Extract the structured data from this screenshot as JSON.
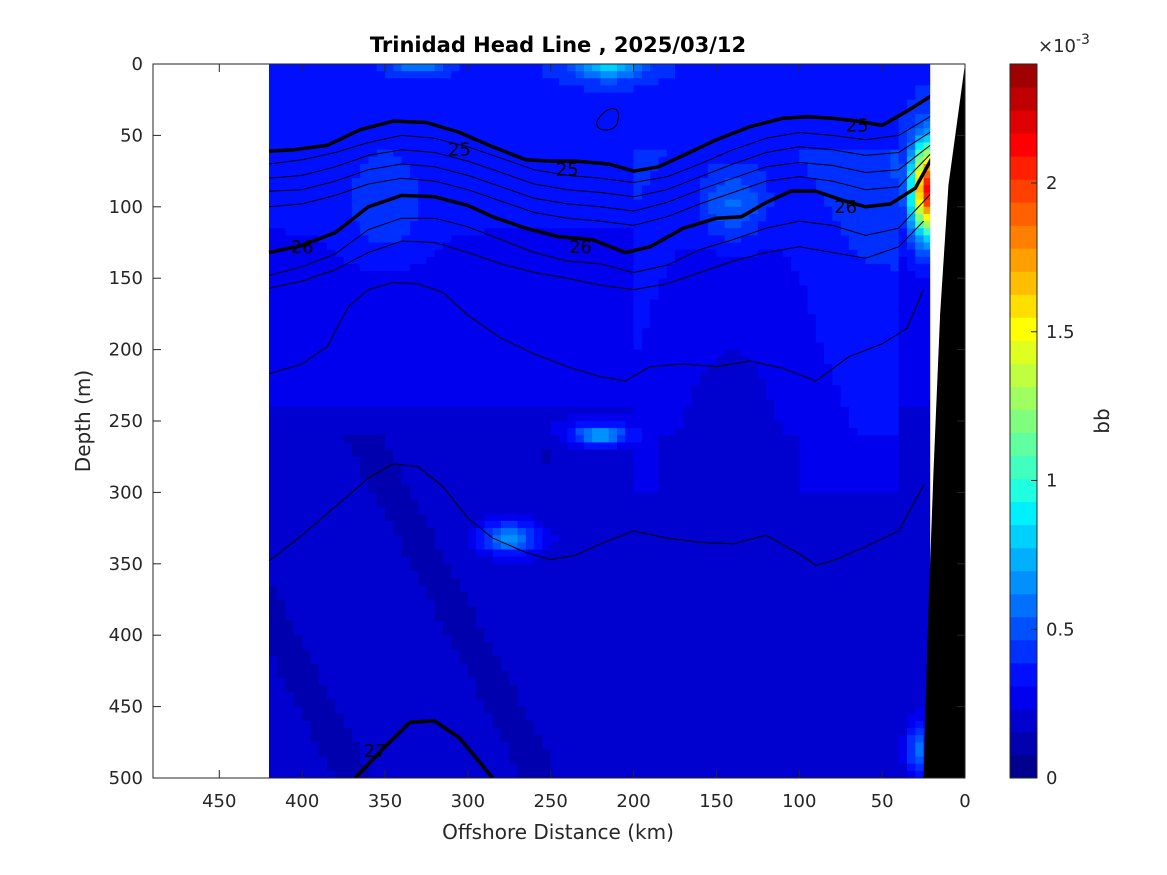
{
  "chart_data": {
    "type": "heatmap",
    "title": "Trinidad Head Line , 2025/03/12",
    "xlabel": "Offshore Distance (km)",
    "ylabel": "Depth (m)",
    "xlim": [
      490,
      0
    ],
    "ylim": [
      0,
      500
    ],
    "x_ticks": [
      450,
      400,
      350,
      300,
      250,
      200,
      150,
      100,
      50,
      0
    ],
    "y_ticks": [
      0,
      50,
      100,
      150,
      200,
      250,
      300,
      350,
      400,
      450,
      500
    ],
    "data_xmax_km": 420,
    "colorbar": {
      "label": "bb",
      "exponent_label": "×10",
      "exponent": "-3",
      "min": 0,
      "max": 2.4,
      "ticks": [
        0,
        0.5,
        1,
        1.5,
        2
      ],
      "tick_labels": [
        "0",
        "0.5",
        "1",
        "1.5",
        "2"
      ],
      "colors": [
        "#00008f",
        "#0000af",
        "#0000cf",
        "#0000ef",
        "#0010ff",
        "#0030ff",
        "#0050ff",
        "#0070ff",
        "#0090ff",
        "#00b0ff",
        "#00d0ff",
        "#00f0ff",
        "#20ffdf",
        "#40ffbf",
        "#60ff9f",
        "#80ff7f",
        "#9fff60",
        "#bfff40",
        "#dfff20",
        "#ffff00",
        "#ffdf00",
        "#ffbf00",
        "#ff9f00",
        "#ff8000",
        "#ff6000",
        "#ff4000",
        "#ff2000",
        "#ff0000",
        "#df0000",
        "#bf0000",
        "#9f0000"
      ]
    },
    "density_contours": [
      {
        "level": 25,
        "label": "25",
        "bold": true,
        "points": [
          [
            420,
            61
          ],
          [
            405,
            60
          ],
          [
            385,
            57
          ],
          [
            365,
            46
          ],
          [
            345,
            40
          ],
          [
            325,
            41
          ],
          [
            305,
            48
          ],
          [
            285,
            58
          ],
          [
            265,
            67
          ],
          [
            250,
            68
          ],
          [
            235,
            68
          ],
          [
            215,
            70
          ],
          [
            200,
            75
          ],
          [
            185,
            72
          ],
          [
            170,
            64
          ],
          [
            150,
            53
          ],
          [
            130,
            44
          ],
          [
            110,
            38
          ],
          [
            95,
            37
          ],
          [
            80,
            38
          ],
          [
            65,
            40
          ],
          [
            50,
            43
          ],
          [
            35,
            33
          ],
          [
            20,
            22
          ]
        ],
        "labels_at": [
          [
            305,
            60
          ],
          [
            240,
            74
          ],
          [
            65,
            43
          ]
        ]
      },
      {
        "level": 26,
        "label": "26",
        "bold": true,
        "points": [
          [
            420,
            132
          ],
          [
            400,
            127
          ],
          [
            380,
            118
          ],
          [
            360,
            100
          ],
          [
            340,
            92
          ],
          [
            320,
            93
          ],
          [
            300,
            99
          ],
          [
            285,
            107
          ],
          [
            265,
            115
          ],
          [
            245,
            121
          ],
          [
            225,
            123
          ],
          [
            205,
            132
          ],
          [
            190,
            128
          ],
          [
            170,
            115
          ],
          [
            150,
            108
          ],
          [
            135,
            107
          ],
          [
            120,
            97
          ],
          [
            105,
            89
          ],
          [
            90,
            89
          ],
          [
            75,
            95
          ],
          [
            60,
            100
          ],
          [
            45,
            98
          ],
          [
            30,
            87
          ],
          [
            20,
            66
          ]
        ],
        "labels_at": [
          [
            400,
            128
          ],
          [
            232,
            128
          ],
          [
            72,
            100
          ]
        ]
      },
      {
        "level": 27,
        "label": "27",
        "bold": true,
        "points": [
          [
            368,
            500
          ],
          [
            350,
            478
          ],
          [
            335,
            461
          ],
          [
            320,
            460
          ],
          [
            305,
            472
          ],
          [
            285,
            500
          ]
        ],
        "labels_at": [
          [
            356,
            481
          ]
        ]
      },
      {
        "level": 25.2,
        "label": "",
        "bold": false,
        "points": [
          [
            420,
            70
          ],
          [
            400,
            67
          ],
          [
            380,
            62
          ],
          [
            360,
            55
          ],
          [
            340,
            50
          ],
          [
            320,
            52
          ],
          [
            300,
            58
          ],
          [
            280,
            66
          ],
          [
            260,
            74
          ],
          [
            240,
            78
          ],
          [
            220,
            80
          ],
          [
            200,
            83
          ],
          [
            180,
            79
          ],
          [
            160,
            70
          ],
          [
            140,
            60
          ],
          [
            120,
            52
          ],
          [
            100,
            48
          ],
          [
            80,
            50
          ],
          [
            60,
            53
          ],
          [
            40,
            50
          ],
          [
            20,
            36
          ]
        ]
      },
      {
        "level": 25.4,
        "label": "",
        "bold": false,
        "points": [
          [
            420,
            80
          ],
          [
            400,
            78
          ],
          [
            380,
            72
          ],
          [
            360,
            64
          ],
          [
            340,
            60
          ],
          [
            320,
            62
          ],
          [
            300,
            68
          ],
          [
            280,
            76
          ],
          [
            260,
            84
          ],
          [
            240,
            88
          ],
          [
            220,
            90
          ],
          [
            200,
            93
          ],
          [
            180,
            88
          ],
          [
            160,
            79
          ],
          [
            140,
            70
          ],
          [
            120,
            62
          ],
          [
            100,
            58
          ],
          [
            80,
            60
          ],
          [
            60,
            64
          ],
          [
            40,
            62
          ],
          [
            20,
            47
          ]
        ]
      },
      {
        "level": 25.6,
        "label": "",
        "bold": false,
        "points": [
          [
            420,
            89
          ],
          [
            400,
            88
          ],
          [
            380,
            82
          ],
          [
            360,
            74
          ],
          [
            340,
            70
          ],
          [
            320,
            72
          ],
          [
            300,
            78
          ],
          [
            280,
            86
          ],
          [
            260,
            94
          ],
          [
            240,
            98
          ],
          [
            220,
            100
          ],
          [
            200,
            103
          ],
          [
            180,
            97
          ],
          [
            160,
            88
          ],
          [
            140,
            80
          ],
          [
            120,
            72
          ],
          [
            100,
            69
          ],
          [
            80,
            71
          ],
          [
            60,
            76
          ],
          [
            40,
            74
          ],
          [
            20,
            56
          ]
        ]
      },
      {
        "level": 25.8,
        "label": "",
        "bold": false,
        "points": [
          [
            420,
            100
          ],
          [
            400,
            98
          ],
          [
            380,
            92
          ],
          [
            360,
            84
          ],
          [
            340,
            80
          ],
          [
            320,
            82
          ],
          [
            300,
            88
          ],
          [
            280,
            96
          ],
          [
            260,
            104
          ],
          [
            240,
            108
          ],
          [
            220,
            110
          ],
          [
            200,
            113
          ],
          [
            180,
            107
          ],
          [
            160,
            98
          ],
          [
            140,
            90
          ],
          [
            120,
            82
          ],
          [
            100,
            79
          ],
          [
            80,
            82
          ],
          [
            60,
            88
          ],
          [
            40,
            86
          ],
          [
            20,
            62
          ]
        ]
      },
      {
        "level": 26.2,
        "label": "",
        "bold": false,
        "points": [
          [
            420,
            148
          ],
          [
            400,
            142
          ],
          [
            380,
            133
          ],
          [
            360,
            116
          ],
          [
            340,
            108
          ],
          [
            320,
            108
          ],
          [
            300,
            114
          ],
          [
            280,
            123
          ],
          [
            260,
            132
          ],
          [
            240,
            138
          ],
          [
            220,
            140
          ],
          [
            200,
            146
          ],
          [
            180,
            141
          ],
          [
            160,
            130
          ],
          [
            140,
            123
          ],
          [
            120,
            115
          ],
          [
            100,
            110
          ],
          [
            80,
            113
          ],
          [
            60,
            120
          ],
          [
            40,
            115
          ],
          [
            20,
            90
          ]
        ]
      },
      {
        "level": 26.4,
        "label": "",
        "bold": false,
        "points": [
          [
            420,
            157
          ],
          [
            400,
            152
          ],
          [
            380,
            144
          ],
          [
            360,
            132
          ],
          [
            340,
            124
          ],
          [
            320,
            125
          ],
          [
            300,
            132
          ],
          [
            280,
            140
          ],
          [
            260,
            146
          ],
          [
            240,
            150
          ],
          [
            220,
            155
          ],
          [
            200,
            158
          ],
          [
            180,
            154
          ],
          [
            160,
            146
          ],
          [
            140,
            138
          ],
          [
            120,
            132
          ],
          [
            100,
            128
          ],
          [
            80,
            132
          ],
          [
            60,
            136
          ],
          [
            40,
            128
          ],
          [
            25,
            110
          ]
        ]
      },
      {
        "level": 26.6,
        "label": "",
        "bold": false,
        "points": [
          [
            420,
            217
          ],
          [
            400,
            210
          ],
          [
            385,
            198
          ],
          [
            372,
            170
          ],
          [
            360,
            158
          ],
          [
            345,
            153
          ],
          [
            330,
            154
          ],
          [
            315,
            160
          ],
          [
            300,
            176
          ],
          [
            280,
            192
          ],
          [
            260,
            203
          ],
          [
            240,
            212
          ],
          [
            220,
            219
          ],
          [
            205,
            222
          ],
          [
            190,
            212
          ],
          [
            170,
            210
          ],
          [
            150,
            212
          ],
          [
            130,
            208
          ],
          [
            110,
            213
          ],
          [
            90,
            222
          ],
          [
            70,
            205
          ],
          [
            50,
            196
          ],
          [
            35,
            185
          ],
          [
            25,
            158
          ]
        ]
      },
      {
        "level": 26.8,
        "label": "",
        "bold": false,
        "points": [
          [
            420,
            348
          ],
          [
            400,
            330
          ],
          [
            380,
            310
          ],
          [
            360,
            290
          ],
          [
            345,
            280
          ],
          [
            330,
            282
          ],
          [
            315,
            296
          ],
          [
            300,
            318
          ],
          [
            285,
            332
          ],
          [
            265,
            342
          ],
          [
            250,
            347
          ],
          [
            235,
            344
          ],
          [
            220,
            336
          ],
          [
            200,
            327
          ],
          [
            180,
            332
          ],
          [
            160,
            335
          ],
          [
            140,
            336
          ],
          [
            120,
            330
          ],
          [
            100,
            343
          ],
          [
            90,
            351
          ],
          [
            80,
            348
          ],
          [
            60,
            338
          ],
          [
            40,
            327
          ],
          [
            25,
            295
          ]
        ]
      }
    ],
    "hotspots": [
      {
        "x": 215,
        "y": 2,
        "sigma_km": 14,
        "sigma_m": 6,
        "value": 0.8
      },
      {
        "x": 330,
        "y": 2,
        "sigma_km": 10,
        "sigma_m": 4,
        "value": 0.6
      },
      {
        "x": 22,
        "y": 88,
        "sigma_km": 7,
        "sigma_m": 22,
        "value": 2.1
      },
      {
        "x": 140,
        "y": 98,
        "sigma_km": 14,
        "sigma_m": 18,
        "value": 0.55
      },
      {
        "x": 350,
        "y": 100,
        "sigma_km": 16,
        "sigma_m": 25,
        "value": 0.45
      },
      {
        "x": 220,
        "y": 260,
        "sigma_km": 12,
        "sigma_m": 5,
        "value": 0.7
      },
      {
        "x": 275,
        "y": 332,
        "sigma_km": 12,
        "sigma_m": 8,
        "value": 0.65
      },
      {
        "x": 28,
        "y": 480,
        "sigma_km": 5,
        "sigma_m": 14,
        "value": 0.55
      }
    ]
  }
}
